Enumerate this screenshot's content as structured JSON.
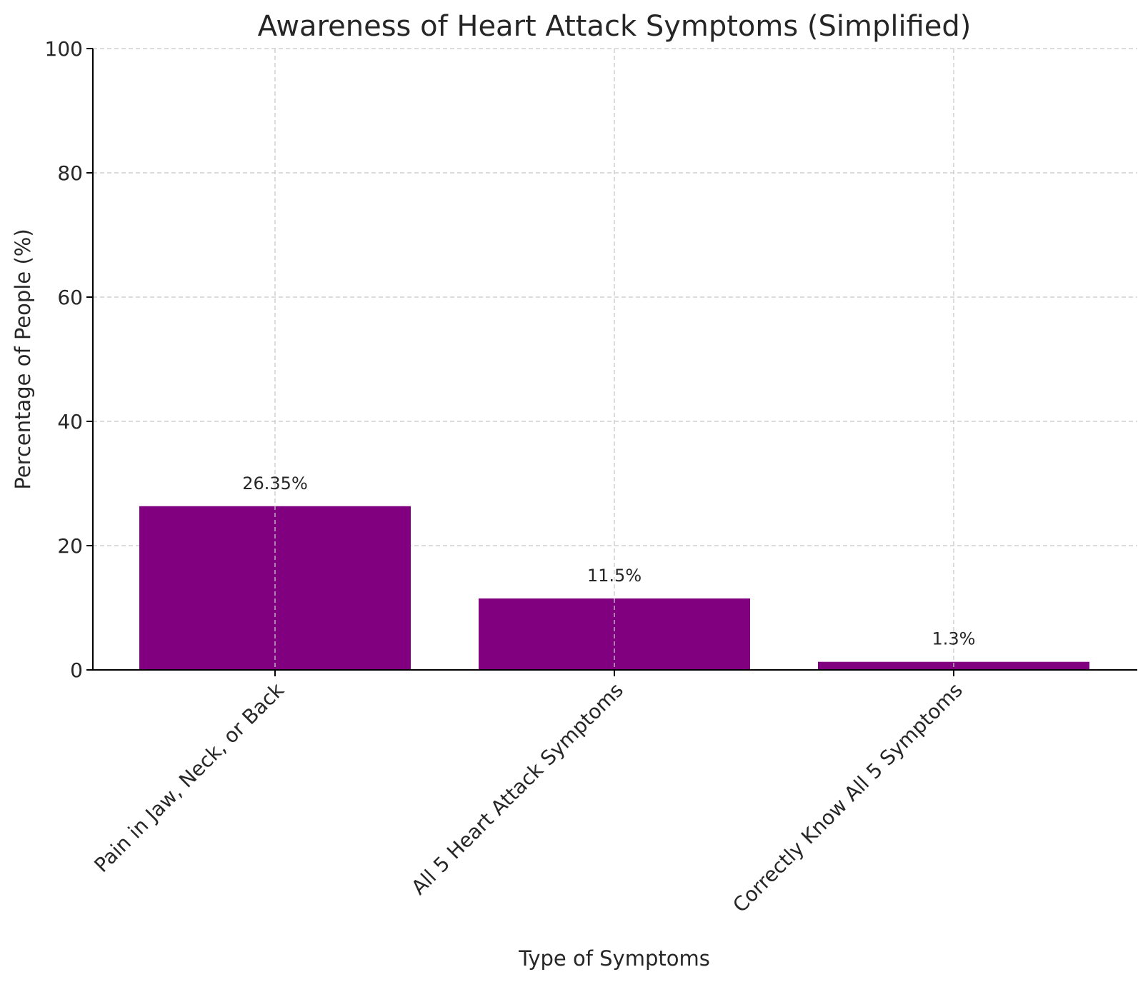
{
  "chart_data": {
    "type": "bar",
    "title": "Awareness of Heart Attack Symptoms (Simplified)",
    "xlabel": "Type of Symptoms",
    "ylabel": "Percentage of People (%)",
    "categories": [
      "Pain in Jaw, Neck, or Back",
      "All 5 Heart Attack Symptoms",
      "Correctly Know All 5 Symptoms"
    ],
    "values": [
      26.35,
      11.5,
      1.3
    ],
    "value_labels": [
      "26.35%",
      "11.5%",
      "1.3%"
    ],
    "ylim": [
      0,
      100
    ],
    "yticks": [
      0,
      20,
      40,
      60,
      80,
      100
    ],
    "grid": true,
    "bar_color": "#800080"
  }
}
